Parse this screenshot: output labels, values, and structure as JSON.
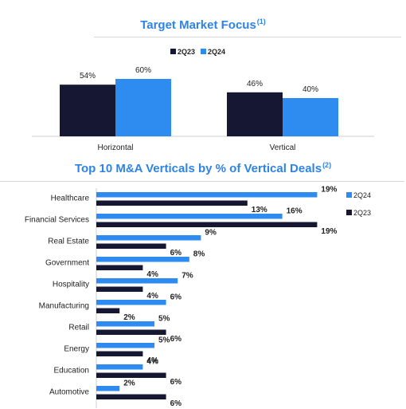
{
  "chart_data": [
    {
      "type": "bar",
      "title": "Target Market Focus",
      "title_note": "(1)",
      "categories": [
        "Horizontal",
        "Vertical"
      ],
      "series": [
        {
          "name": "2Q23",
          "values": [
            54,
            46
          ],
          "labels": [
            "54%",
            "46%"
          ],
          "color": "#151733"
        },
        {
          "name": "2Q24",
          "values": [
            60,
            40
          ],
          "labels": [
            "60%",
            "40%"
          ],
          "color": "#2e8bf0"
        }
      ],
      "value_unit": "%",
      "ylim": [
        0,
        65
      ],
      "legend": "top-right",
      "grid": false
    },
    {
      "type": "bar",
      "orientation": "horizontal",
      "title": "Top 10 M&A Verticals by % of Vertical Deals",
      "title_note": "(2)",
      "categories": [
        "Healthcare",
        "Financial Services",
        "Real Estate",
        "Government",
        "Hospitality",
        "Manufacturing",
        "Retail",
        "Energy",
        "Education",
        "Automotive"
      ],
      "series": [
        {
          "name": "2Q24",
          "values": [
            19,
            16,
            9,
            8,
            7,
            6,
            5,
            5,
            4,
            2
          ],
          "labels": [
            "19%",
            "16%",
            "9%",
            "8%",
            "7%",
            "6%",
            "5%",
            "5%",
            "4%",
            "2%"
          ],
          "color": "#2e8bf0"
        },
        {
          "name": "2Q23",
          "values": [
            13,
            19,
            6,
            4,
            4,
            2,
            6,
            4,
            6,
            6
          ],
          "labels": [
            "13%",
            "19%",
            "6%",
            "4%",
            "4%",
            "2%",
            "6%",
            "4%",
            "6%",
            "6%"
          ],
          "color": "#151733"
        }
      ],
      "value_unit": "%",
      "xlim": [
        0,
        20
      ],
      "legend": "top-right",
      "grid": false
    }
  ]
}
